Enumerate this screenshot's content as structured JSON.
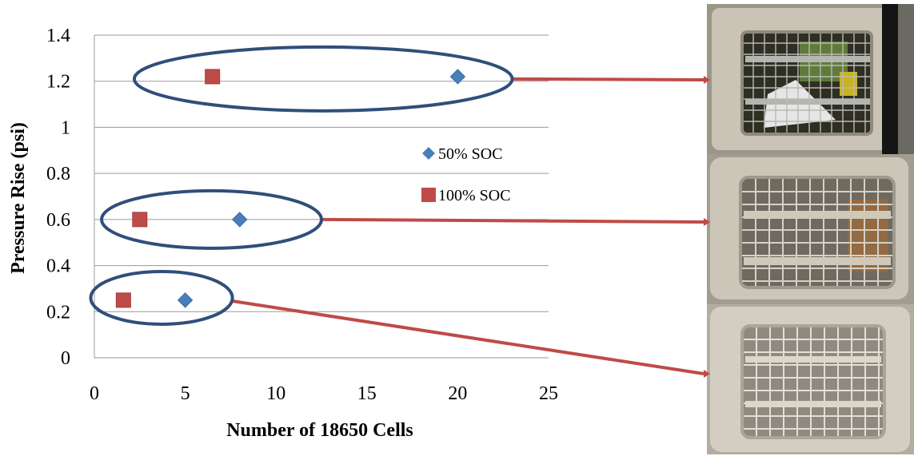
{
  "chart_data": {
    "type": "scatter",
    "xlabel": "Number of 18650 Cells",
    "ylabel": "Pressure Rise (psi)",
    "xlim": [
      0,
      25
    ],
    "ylim": [
      0,
      1.4
    ],
    "x_ticks": [
      "0",
      "5",
      "10",
      "15",
      "20",
      "25"
    ],
    "y_ticks": [
      "0",
      "0.2",
      "0.4",
      "0.6",
      "0.8",
      "1",
      "1.2",
      "1.4"
    ],
    "grid": "horizontal",
    "legend_position": "right",
    "series": [
      {
        "name": "50% SOC",
        "marker": "diamond",
        "color": "#4a7ebb",
        "points": [
          {
            "x": 20,
            "y": 1.22
          },
          {
            "x": 8,
            "y": 0.6
          },
          {
            "x": 5,
            "y": 0.25
          }
        ]
      },
      {
        "name": "100% SOC",
        "marker": "square",
        "color": "#be4b48",
        "points": [
          {
            "x": 6.5,
            "y": 1.22
          },
          {
            "x": 2.5,
            "y": 0.6
          },
          {
            "x": 1.6,
            "y": 0.25
          }
        ]
      }
    ],
    "annotations": {
      "ellipse_color": "#2f4f7a",
      "arrow_color": "#be4b48",
      "groups": [
        {
          "x_range": [
            2.2,
            23
          ],
          "y": 1.21,
          "photo_index": 0
        },
        {
          "x_range": [
            0.4,
            12.5
          ],
          "y": 0.6,
          "photo_index": 1
        },
        {
          "x_range": [
            -0.2,
            7.6
          ],
          "y": 0.26,
          "photo_index": 2
        }
      ]
    }
  },
  "photos": [
    {
      "icon": "vent-grille-photo-burnt",
      "color": "#9a9688"
    },
    {
      "icon": "vent-grille-photo-sooted",
      "color": "#a29d90"
    },
    {
      "icon": "vent-grille-photo-clean",
      "color": "#b3ad9f"
    }
  ]
}
